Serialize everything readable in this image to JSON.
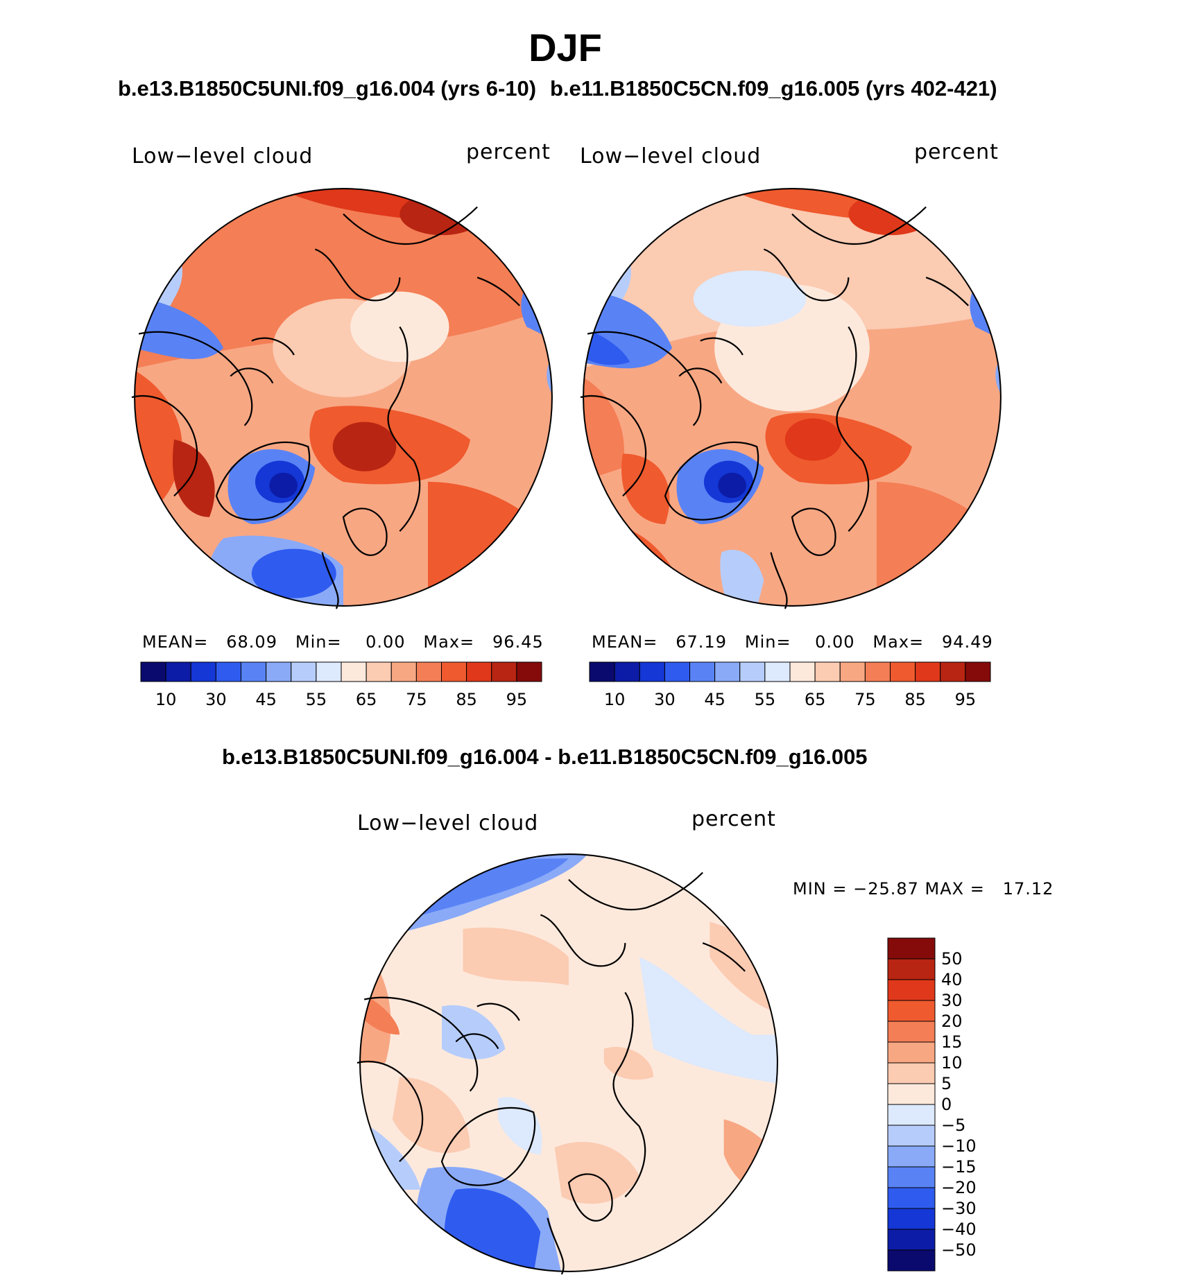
{
  "figure": {
    "season": "DJF",
    "variable": "Low−level cloud",
    "units": "percent"
  },
  "panels": [
    {
      "case": "b.e13.B1850C5UNI.f09_g16.004 (yrs 6-10)",
      "variable_label": "Low−level cloud",
      "units_label": "percent",
      "stats": {
        "mean_label": "MEAN=",
        "mean": "68.09",
        "min_label": "Min=",
        "min": "0.00",
        "max_label": "Max=",
        "max": "96.45"
      }
    },
    {
      "case": "b.e11.B1850C5CN.f09_g16.005 (yrs 402-421)",
      "variable_label": "Low−level cloud",
      "units_label": "percent",
      "stats": {
        "mean_label": "MEAN=",
        "mean": "67.19",
        "min_label": "Min=",
        "min": "0.00",
        "max_label": "Max=",
        "max": "94.49"
      }
    }
  ],
  "abs_colorbar": {
    "colors": [
      "#0a0a6e",
      "#0c1ca6",
      "#1437d6",
      "#2f5bef",
      "#5983f5",
      "#8aaaf8",
      "#b6cdfb",
      "#dde9fc",
      "#fde9dc",
      "#fbcbb2",
      "#f8a783",
      "#f47e55",
      "#ef5a2e",
      "#e0381a",
      "#b82512",
      "#850b0b"
    ],
    "tick_labels": [
      "10",
      "30",
      "45",
      "55",
      "65",
      "75",
      "85",
      "95"
    ]
  },
  "diff_panel": {
    "title": "b.e13.B1850C5UNI.f09_g16.004 - b.e11.B1850C5CN.f09_g16.005",
    "variable_label": "Low−level cloud",
    "units_label": "percent",
    "minmax": "MIN = −25.87 MAX =   17.12"
  },
  "diff_colorbar": {
    "colors_top_to_bottom": [
      "#850b0b",
      "#b82512",
      "#e0381a",
      "#ef5a2e",
      "#f47e55",
      "#f8a783",
      "#fbcbb2",
      "#fde9dc",
      "#dde9fc",
      "#b6cdfb",
      "#8aaaf8",
      "#5983f5",
      "#2f5bef",
      "#1437d6",
      "#0c1ca6",
      "#0a0a6e"
    ],
    "tick_labels": [
      "50",
      "40",
      "30",
      "20",
      "15",
      "10",
      "5",
      "0",
      "−5",
      "−10",
      "−15",
      "−20",
      "−30",
      "−40",
      "−50"
    ]
  },
  "colors": {
    "land_outline": "#000000",
    "cloud_low": "#dde9fc",
    "cloud_high": "#ef5a2e"
  }
}
